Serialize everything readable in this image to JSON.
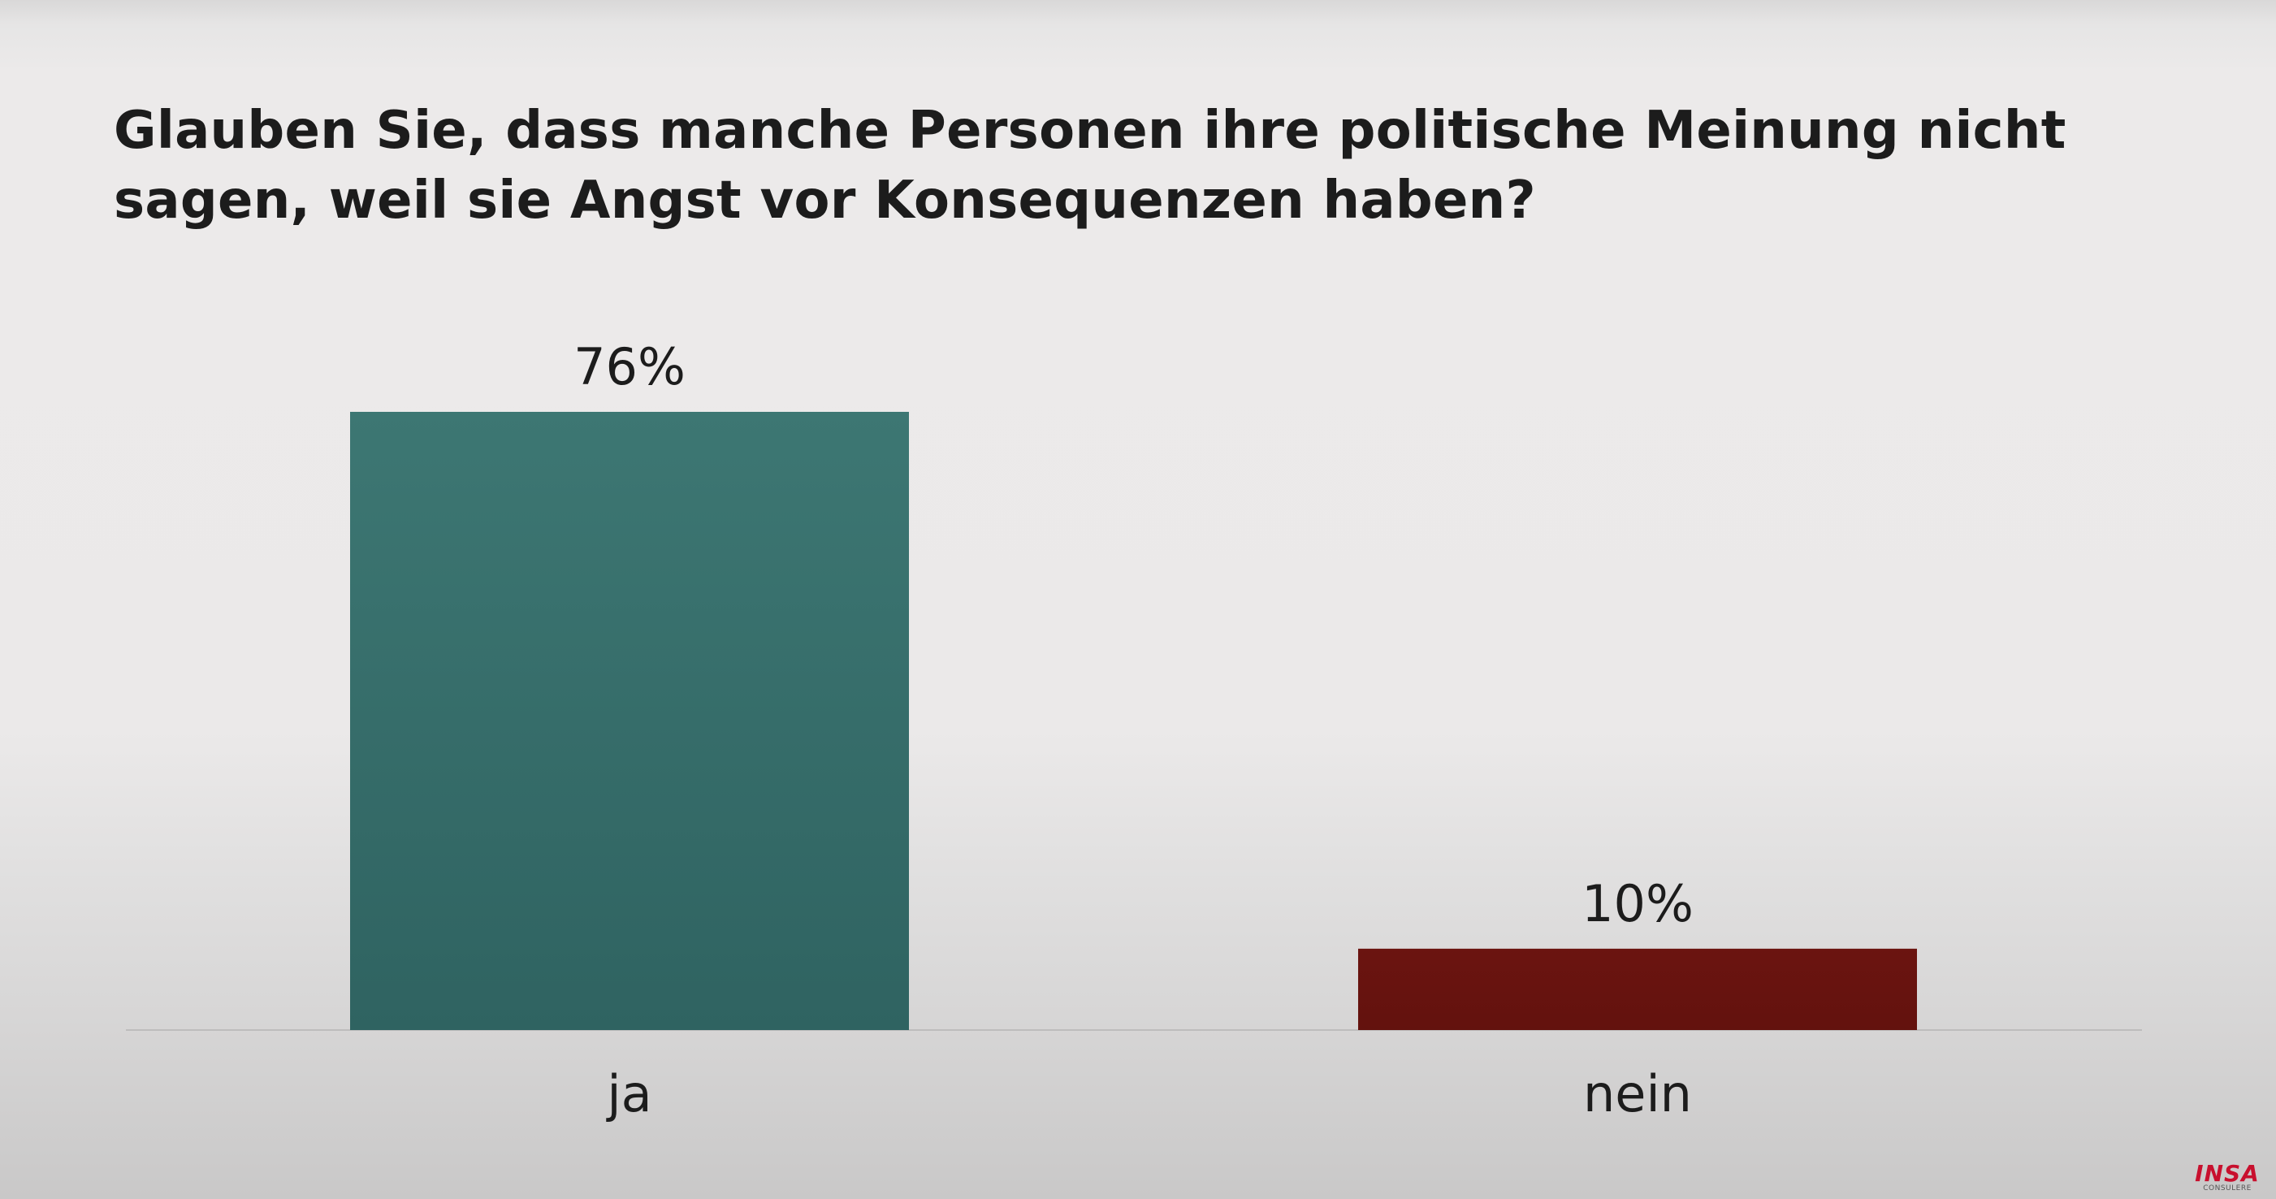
{
  "chart_data": {
    "type": "bar",
    "title": "Glauben Sie, dass manche Personen ihre politische Meinung nicht sagen, weil sie Angst vor Konsequenzen haben?",
    "categories": [
      "ja",
      "nein"
    ],
    "values": [
      76,
      10
    ],
    "value_labels": [
      "76%",
      "10%"
    ],
    "colors": [
      "#3d7773",
      "#6b1410"
    ],
    "ylim": [
      0,
      76
    ],
    "grid": false,
    "legend": "none"
  },
  "branding": {
    "logo_text": "INSA",
    "logo_subtext": "CONSULERE"
  }
}
